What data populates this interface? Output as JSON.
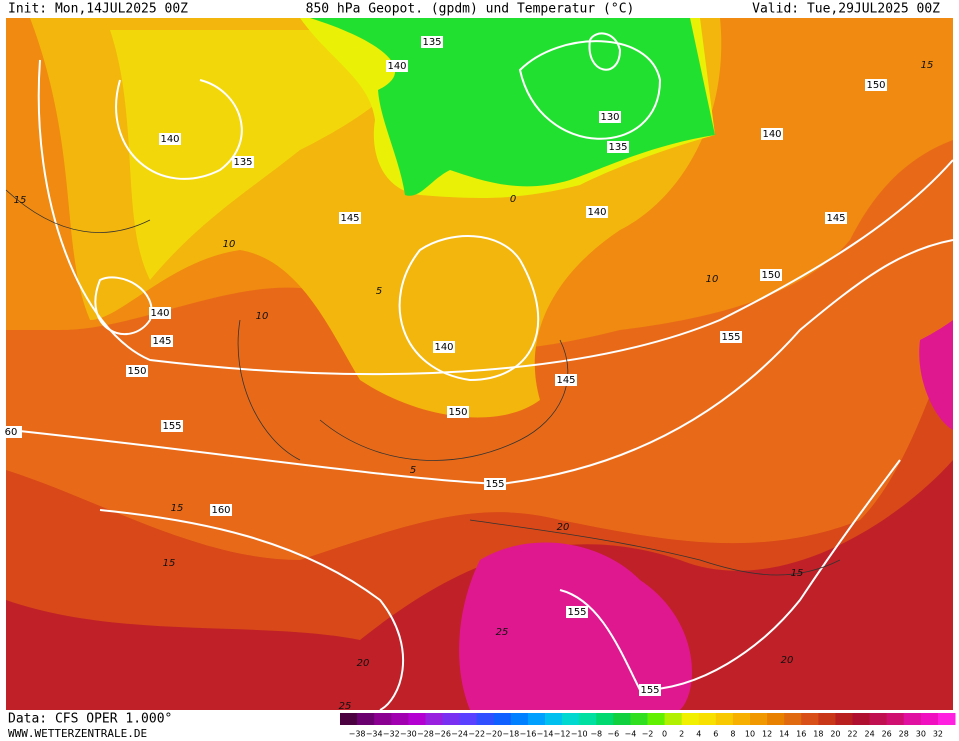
{
  "header": {
    "init": "Init: Mon,14JUL2025 00Z",
    "title": "850 hPa Geopot. (gpdm) und Temperatur (°C)",
    "valid": "Valid: Tue,29JUL2025 00Z"
  },
  "footer": {
    "data": "Data: CFS OPER 1.000°",
    "site": "WWW.WETTERZENTRALE.DE"
  },
  "geopotential_labels": [
    "135",
    "140",
    "130",
    "135",
    "140",
    "135",
    "145",
    "140",
    "150",
    "140",
    "145",
    "150",
    "155",
    "140",
    "145",
    "150",
    "140",
    "145",
    "150",
    "155",
    "155",
    "160",
    "155",
    "155",
    "60"
  ],
  "temperature_labels": [
    "15",
    "0",
    "10",
    "5",
    "10",
    "10",
    "5",
    "15",
    "20",
    "15",
    "15",
    "25",
    "20",
    "20",
    "15",
    "25"
  ],
  "legend": {
    "labels": [
      "−38",
      "−34",
      "−32",
      "−30",
      "−28",
      "−26",
      "−24",
      "−22",
      "−20",
      "−18",
      "−16",
      "−14",
      "−12",
      "−10",
      "−8",
      "−6",
      "−4",
      "−2",
      "0",
      "2",
      "4",
      "6",
      "8",
      "10",
      "12",
      "14",
      "16",
      "18",
      "20",
      "22",
      "24",
      "26",
      "28",
      "30",
      "32"
    ],
    "colors": [
      "#4b0040",
      "#6a0070",
      "#8a0090",
      "#a000b0",
      "#b400d0",
      "#9a20e0",
      "#7a30f0",
      "#5a40ff",
      "#3050ff",
      "#1060ff",
      "#0080ff",
      "#00a0ff",
      "#00c0f0",
      "#00d8d0",
      "#00e0a0",
      "#00d870",
      "#10d040",
      "#30e020",
      "#60f000",
      "#b0f000",
      "#f0f000",
      "#f8e000",
      "#f8c800",
      "#f8b000",
      "#f09800",
      "#e88000",
      "#e06a10",
      "#d85018",
      "#c83818",
      "#b82020",
      "#b01030",
      "#c01050",
      "#d01070",
      "#e010a0",
      "#f010c0",
      "#ff20e0"
    ]
  }
}
